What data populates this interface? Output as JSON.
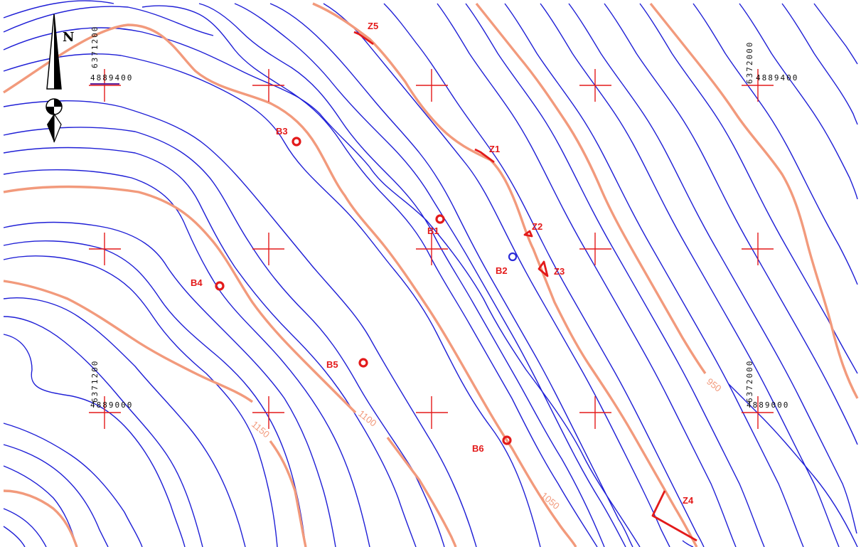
{
  "map": {
    "north_label": "N",
    "contour_labels": [
      {
        "id": "c950",
        "text": "950"
      },
      {
        "id": "c1050",
        "text": "1050"
      },
      {
        "id": "c1100",
        "text": "1100"
      },
      {
        "id": "c1150",
        "text": "1150"
      }
    ],
    "coordinate_labels": {
      "tl_north": "4889400",
      "tl_east": "6371200",
      "tr_north": "4889400",
      "tr_east": "6372000",
      "bl_north": "4889000",
      "bl_east": "6371200",
      "br_north": "4889000",
      "br_east": "6372000"
    },
    "boreholes": [
      {
        "id": "B1",
        "label": "B1"
      },
      {
        "id": "B2",
        "label": "B2"
      },
      {
        "id": "B3",
        "label": "B3"
      },
      {
        "id": "B4",
        "label": "B4"
      },
      {
        "id": "B5",
        "label": "B5"
      },
      {
        "id": "B6",
        "label": "B6"
      }
    ],
    "zones": [
      {
        "id": "Z1",
        "label": "Z1"
      },
      {
        "id": "Z2",
        "label": "Z2"
      },
      {
        "id": "Z3",
        "label": "Z3"
      },
      {
        "id": "Z4",
        "label": "Z4"
      },
      {
        "id": "Z5",
        "label": "Z5"
      }
    ],
    "colors": {
      "contour_minor": "#1f1fd6",
      "contour_major": "#f29a7c",
      "markers": "#e31a1a"
    },
    "icons": [
      "north-arrow-icon"
    ]
  }
}
